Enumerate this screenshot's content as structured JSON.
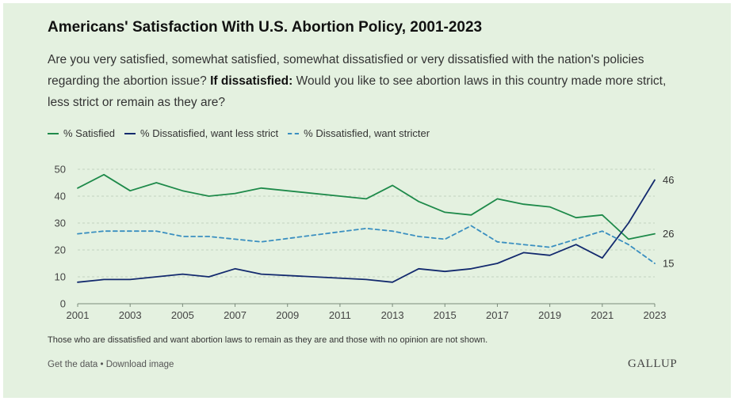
{
  "title": "Americans' Satisfaction With U.S. Abortion Policy, 2001-2023",
  "question_pre": "Are you very satisfied, somewhat satisfied, somewhat dissatisfied or very dissatisfied with the nation's policies regarding the abortion issue? ",
  "question_bold": "If dissatisfied:",
  "question_post": " Would you like to see abortion laws in this country made more strict, less strict or remain as they are?",
  "footnote": "Those who are dissatisfied and want abortion laws to remain as they are and those with no opinion are not shown.",
  "links": {
    "get_data": "Get the data",
    "separator": " • ",
    "download": "Download image"
  },
  "brand": "GALLUP",
  "colors": {
    "background": "#e4f1e0",
    "satisfied": "#1e8a4a",
    "less_strict": "#132a6e",
    "stricter": "#3a8fc0",
    "grid": "#c2d4c0"
  },
  "chart_data": {
    "type": "line",
    "ylim": [
      0,
      50
    ],
    "yticks": [
      0,
      10,
      20,
      30,
      40,
      50
    ],
    "xlim": [
      2001,
      2023
    ],
    "xticks": [
      2001,
      2003,
      2005,
      2007,
      2009,
      2011,
      2013,
      2015,
      2017,
      2019,
      2021,
      2023
    ],
    "grid": true,
    "legend_position": "top-left",
    "series": [
      {
        "name": "% Satisfied",
        "style": "solid",
        "color": "#1e8a4a",
        "x": [
          2001,
          2002,
          2003,
          2004,
          2005,
          2006,
          2007,
          2008,
          2012,
          2013,
          2014,
          2015,
          2016,
          2017,
          2018,
          2019,
          2020,
          2021,
          2022,
          2023
        ],
        "y": [
          43,
          48,
          42,
          45,
          42,
          40,
          41,
          43,
          39,
          44,
          38,
          34,
          33,
          39,
          37,
          36,
          32,
          33,
          24,
          26
        ],
        "end_label": "26"
      },
      {
        "name": "% Dissatisfied, want less strict",
        "style": "solid",
        "color": "#132a6e",
        "x": [
          2001,
          2002,
          2003,
          2004,
          2005,
          2006,
          2007,
          2008,
          2012,
          2013,
          2014,
          2015,
          2016,
          2017,
          2018,
          2019,
          2020,
          2021,
          2022,
          2023
        ],
        "y": [
          8,
          9,
          9,
          10,
          11,
          10,
          13,
          11,
          9,
          8,
          13,
          12,
          13,
          15,
          19,
          18,
          22,
          17,
          30,
          46
        ],
        "end_label": "46"
      },
      {
        "name": "% Dissatisfied, want stricter",
        "style": "dashed",
        "color": "#3a8fc0",
        "x": [
          2001,
          2002,
          2003,
          2004,
          2005,
          2006,
          2007,
          2008,
          2012,
          2013,
          2014,
          2015,
          2016,
          2017,
          2018,
          2019,
          2020,
          2021,
          2022,
          2023
        ],
        "y": [
          26,
          27,
          27,
          27,
          25,
          25,
          24,
          23,
          28,
          27,
          25,
          24,
          29,
          23,
          22,
          21,
          24,
          27,
          22,
          15
        ],
        "end_label": "15"
      }
    ]
  }
}
